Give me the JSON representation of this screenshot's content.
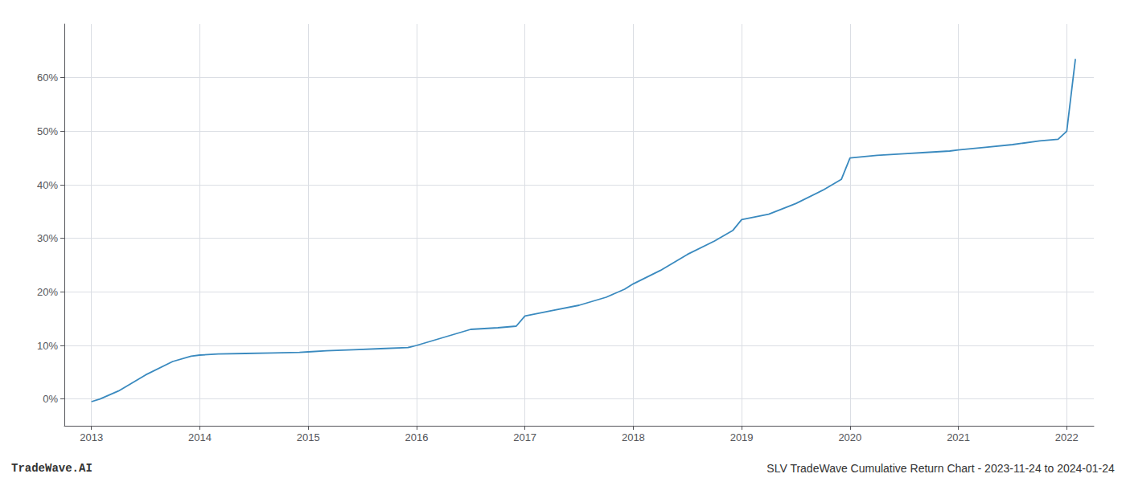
{
  "chart_data": {
    "type": "line",
    "x": [
      2013.0,
      2013.08,
      2013.25,
      2013.5,
      2013.75,
      2013.92,
      2014.0,
      2014.17,
      2014.42,
      2014.67,
      2014.92,
      2015.0,
      2015.17,
      2015.42,
      2015.67,
      2015.92,
      2016.0,
      2016.25,
      2016.5,
      2016.75,
      2016.92,
      2017.0,
      2017.25,
      2017.5,
      2017.75,
      2017.92,
      2018.0,
      2018.25,
      2018.5,
      2018.75,
      2018.92,
      2019.0,
      2019.25,
      2019.5,
      2019.75,
      2019.92,
      2020.0,
      2020.25,
      2020.5,
      2020.67,
      2020.92,
      2021.0,
      2021.25,
      2021.5,
      2021.75,
      2021.92,
      2022.0,
      2022.08
    ],
    "values": [
      -0.5,
      0.0,
      1.5,
      4.5,
      7.0,
      8.0,
      8.2,
      8.4,
      8.5,
      8.6,
      8.7,
      8.8,
      9.0,
      9.2,
      9.4,
      9.6,
      10.0,
      11.5,
      13.0,
      13.3,
      13.6,
      15.5,
      16.5,
      17.5,
      19.0,
      20.5,
      21.5,
      24.0,
      27.0,
      29.5,
      31.5,
      33.5,
      34.5,
      36.5,
      39.0,
      41.0,
      45.0,
      45.5,
      45.8,
      46.0,
      46.3,
      46.5,
      47.0,
      47.5,
      48.2,
      48.5,
      50.0,
      63.5
    ],
    "color": "#3a8abf",
    "xlim": [
      2012.75,
      2022.25
    ],
    "ylim": [
      -5,
      70
    ],
    "xticks": [
      2013,
      2014,
      2015,
      2016,
      2017,
      2018,
      2019,
      2020,
      2021,
      2022
    ],
    "yticks": [
      {
        "value": 0,
        "label": "0%"
      },
      {
        "value": 10,
        "label": "10%"
      },
      {
        "value": 20,
        "label": "20%"
      },
      {
        "value": 30,
        "label": "30%"
      },
      {
        "value": 40,
        "label": "40%"
      },
      {
        "value": 50,
        "label": "50%"
      },
      {
        "value": 60,
        "label": "60%"
      }
    ],
    "grid": true,
    "annotations": [
      "TradeWave.AI",
      "SLV TradeWave Cumulative Return Chart - 2023-11-24 to 2024-01-24"
    ]
  }
}
